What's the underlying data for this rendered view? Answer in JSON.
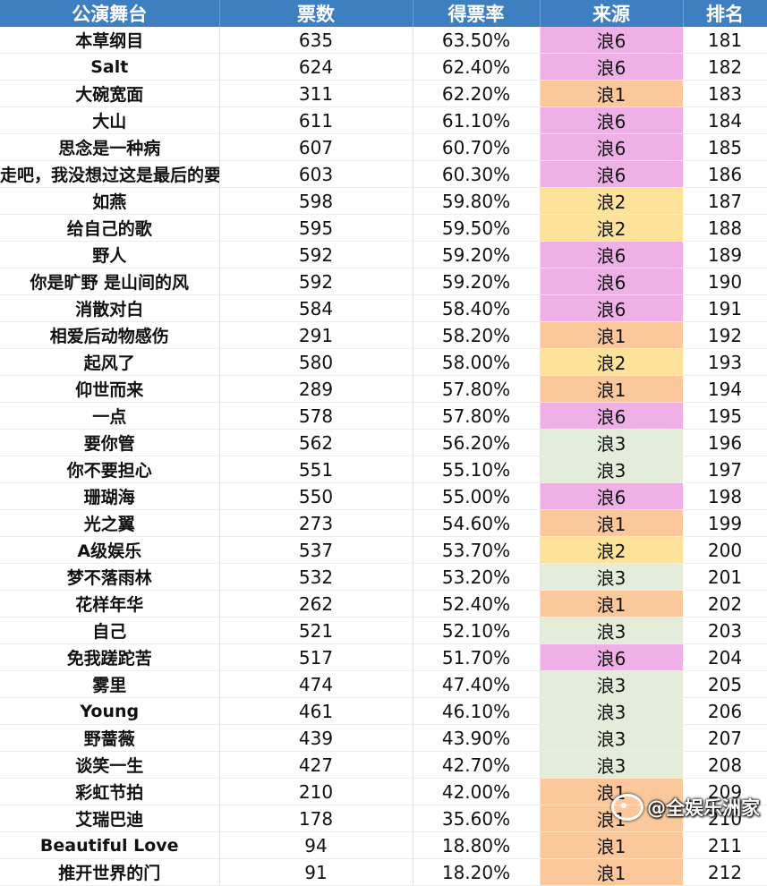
{
  "headers": [
    "公演舞台",
    "票数",
    "得票率",
    "来源",
    "排名"
  ],
  "source_colors": {
    "浪1": "#fbc89b",
    "浪2": "#fde39a",
    "浪3": "#e3edda",
    "浪6": "#eeb0e6"
  },
  "rows": [
    {
      "stage": "本草纲目",
      "votes": "635",
      "rate": "63.50%",
      "source": "浪6",
      "rank": "181"
    },
    {
      "stage": "Salt",
      "votes": "624",
      "rate": "62.40%",
      "source": "浪6",
      "rank": "182"
    },
    {
      "stage": "大碗宽面",
      "votes": "311",
      "rate": "62.20%",
      "source": "浪1",
      "rank": "183"
    },
    {
      "stage": "大山",
      "votes": "611",
      "rate": "61.10%",
      "source": "浪6",
      "rank": "184"
    },
    {
      "stage": "思念是一种病",
      "votes": "607",
      "rate": "60.70%",
      "source": "浪6",
      "rank": "185"
    },
    {
      "stage": "走吧，我没想过这是最后的要",
      "votes": "603",
      "rate": "60.30%",
      "source": "浪6",
      "rank": "186"
    },
    {
      "stage": "如燕",
      "votes": "598",
      "rate": "59.80%",
      "source": "浪2",
      "rank": "187"
    },
    {
      "stage": "给自己的歌",
      "votes": "595",
      "rate": "59.50%",
      "source": "浪2",
      "rank": "188"
    },
    {
      "stage": "野人",
      "votes": "592",
      "rate": "59.20%",
      "source": "浪6",
      "rank": "189"
    },
    {
      "stage": "你是旷野 是山间的风",
      "votes": "592",
      "rate": "59.20%",
      "source": "浪6",
      "rank": "190"
    },
    {
      "stage": "消散对白",
      "votes": "584",
      "rate": "58.40%",
      "source": "浪6",
      "rank": "191"
    },
    {
      "stage": "相爱后动物感伤",
      "votes": "291",
      "rate": "58.20%",
      "source": "浪1",
      "rank": "192"
    },
    {
      "stage": "起风了",
      "votes": "580",
      "rate": "58.00%",
      "source": "浪2",
      "rank": "193"
    },
    {
      "stage": "仰世而来",
      "votes": "289",
      "rate": "57.80%",
      "source": "浪1",
      "rank": "194"
    },
    {
      "stage": "一点",
      "votes": "578",
      "rate": "57.80%",
      "source": "浪6",
      "rank": "195"
    },
    {
      "stage": "要你管",
      "votes": "562",
      "rate": "56.20%",
      "source": "浪3",
      "rank": "196"
    },
    {
      "stage": "你不要担心",
      "votes": "551",
      "rate": "55.10%",
      "source": "浪3",
      "rank": "197"
    },
    {
      "stage": "珊瑚海",
      "votes": "550",
      "rate": "55.00%",
      "source": "浪6",
      "rank": "198"
    },
    {
      "stage": "光之翼",
      "votes": "273",
      "rate": "54.60%",
      "source": "浪1",
      "rank": "199"
    },
    {
      "stage": "A级娱乐",
      "votes": "537",
      "rate": "53.70%",
      "source": "浪2",
      "rank": "200"
    },
    {
      "stage": "梦不落雨林",
      "votes": "532",
      "rate": "53.20%",
      "source": "浪3",
      "rank": "201"
    },
    {
      "stage": "花样年华",
      "votes": "262",
      "rate": "52.40%",
      "source": "浪1",
      "rank": "202"
    },
    {
      "stage": "自己",
      "votes": "521",
      "rate": "52.10%",
      "source": "浪3",
      "rank": "203"
    },
    {
      "stage": "免我蹉跎苦",
      "votes": "517",
      "rate": "51.70%",
      "source": "浪6",
      "rank": "204"
    },
    {
      "stage": "雾里",
      "votes": "474",
      "rate": "47.40%",
      "source": "浪3",
      "rank": "205"
    },
    {
      "stage": "Young",
      "votes": "461",
      "rate": "46.10%",
      "source": "浪3",
      "rank": "206"
    },
    {
      "stage": "野蔷薇",
      "votes": "439",
      "rate": "43.90%",
      "source": "浪3",
      "rank": "207"
    },
    {
      "stage": "谈笑一生",
      "votes": "427",
      "rate": "42.70%",
      "source": "浪3",
      "rank": "208"
    },
    {
      "stage": "彩虹节拍",
      "votes": "210",
      "rate": "42.00%",
      "source": "浪1",
      "rank": "209"
    },
    {
      "stage": "艾瑞巴迪",
      "votes": "178",
      "rate": "35.60%",
      "source": "浪1",
      "rank": "210"
    },
    {
      "stage": "Beautiful Love",
      "votes": "94",
      "rate": "18.80%",
      "source": "浪1",
      "rank": "211"
    },
    {
      "stage": "推开世界的门",
      "votes": "91",
      "rate": "18.20%",
      "source": "浪1",
      "rank": "212"
    }
  ],
  "watermark": "@全娱乐洲家"
}
